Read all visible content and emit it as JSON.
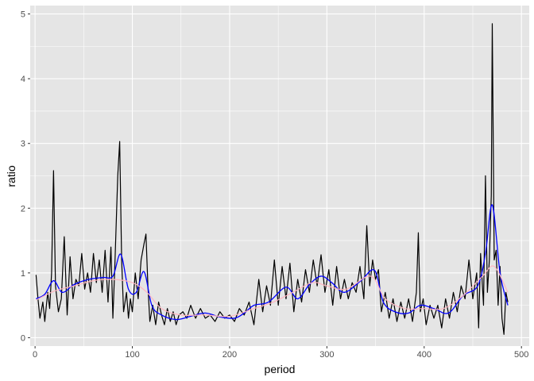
{
  "chart_data": {
    "type": "line",
    "xlabel": "period",
    "ylabel": "ratio",
    "xlim": [
      -5,
      508
    ],
    "ylim": [
      -0.13,
      5.13
    ],
    "x_ticks": [
      0,
      100,
      200,
      300,
      400,
      500
    ],
    "y_ticks": [
      0,
      1,
      2,
      3,
      4,
      5
    ],
    "grid": true,
    "panel_background": "#e5e5e5",
    "grid_color": "#ffffff",
    "n_periods": 486,
    "series": [
      {
        "color": "#000000",
        "anchors": [
          [
            1,
            0.97
          ],
          [
            3,
            0.6
          ],
          [
            5,
            0.3
          ],
          [
            8,
            0.55
          ],
          [
            10,
            0.25
          ],
          [
            13,
            0.7
          ],
          [
            15,
            0.45
          ],
          [
            17,
            1.0
          ],
          [
            19,
            2.58
          ],
          [
            21,
            0.8
          ],
          [
            24,
            0.4
          ],
          [
            27,
            0.6
          ],
          [
            30,
            1.56
          ],
          [
            33,
            0.35
          ],
          [
            36,
            1.25
          ],
          [
            39,
            0.6
          ],
          [
            42,
            0.9
          ],
          [
            45,
            0.8
          ],
          [
            48,
            1.3
          ],
          [
            51,
            0.75
          ],
          [
            54,
            1.0
          ],
          [
            57,
            0.7
          ],
          [
            60,
            1.3
          ],
          [
            63,
            0.85
          ],
          [
            66,
            1.2
          ],
          [
            69,
            0.7
          ],
          [
            72,
            1.35
          ],
          [
            75,
            0.55
          ],
          [
            78,
            1.4
          ],
          [
            80,
            0.3
          ],
          [
            82,
            1.1
          ],
          [
            85,
            2.5
          ],
          [
            87,
            3.03
          ],
          [
            89,
            1.2
          ],
          [
            91,
            0.4
          ],
          [
            94,
            0.7
          ],
          [
            96,
            0.3
          ],
          [
            98,
            0.6
          ],
          [
            100,
            0.4
          ],
          [
            103,
            1.0
          ],
          [
            106,
            0.6
          ],
          [
            109,
            1.2
          ],
          [
            112,
            1.45
          ],
          [
            114,
            1.6
          ],
          [
            116,
            0.8
          ],
          [
            118,
            0.25
          ],
          [
            121,
            0.5
          ],
          [
            124,
            0.2
          ],
          [
            127,
            0.55
          ],
          [
            130,
            0.35
          ],
          [
            133,
            0.2
          ],
          [
            136,
            0.45
          ],
          [
            139,
            0.25
          ],
          [
            142,
            0.4
          ],
          [
            145,
            0.2
          ],
          [
            148,
            0.35
          ],
          [
            152,
            0.4
          ],
          [
            156,
            0.3
          ],
          [
            160,
            0.5
          ],
          [
            165,
            0.3
          ],
          [
            170,
            0.45
          ],
          [
            175,
            0.3
          ],
          [
            180,
            0.35
          ],
          [
            185,
            0.25
          ],
          [
            190,
            0.4
          ],
          [
            195,
            0.3
          ],
          [
            200,
            0.35
          ],
          [
            205,
            0.25
          ],
          [
            210,
            0.45
          ],
          [
            215,
            0.35
          ],
          [
            220,
            0.55
          ],
          [
            225,
            0.2
          ],
          [
            230,
            0.9
          ],
          [
            234,
            0.4
          ],
          [
            238,
            0.8
          ],
          [
            242,
            0.5
          ],
          [
            246,
            1.2
          ],
          [
            250,
            0.5
          ],
          [
            254,
            1.1
          ],
          [
            258,
            0.6
          ],
          [
            262,
            1.15
          ],
          [
            266,
            0.4
          ],
          [
            270,
            0.9
          ],
          [
            274,
            0.55
          ],
          [
            278,
            1.05
          ],
          [
            282,
            0.7
          ],
          [
            286,
            1.2
          ],
          [
            290,
            0.8
          ],
          [
            294,
            1.28
          ],
          [
            298,
            0.7
          ],
          [
            302,
            1.05
          ],
          [
            306,
            0.5
          ],
          [
            310,
            1.1
          ],
          [
            314,
            0.6
          ],
          [
            318,
            0.9
          ],
          [
            322,
            0.6
          ],
          [
            326,
            0.85
          ],
          [
            330,
            0.7
          ],
          [
            334,
            1.1
          ],
          [
            338,
            0.6
          ],
          [
            341,
            1.73
          ],
          [
            344,
            0.8
          ],
          [
            347,
            1.2
          ],
          [
            350,
            0.9
          ],
          [
            353,
            1.05
          ],
          [
            356,
            0.4
          ],
          [
            360,
            0.7
          ],
          [
            364,
            0.3
          ],
          [
            368,
            0.6
          ],
          [
            372,
            0.25
          ],
          [
            376,
            0.55
          ],
          [
            380,
            0.3
          ],
          [
            384,
            0.6
          ],
          [
            388,
            0.25
          ],
          [
            392,
            0.7
          ],
          [
            394,
            1.62
          ],
          [
            396,
            0.4
          ],
          [
            399,
            0.6
          ],
          [
            402,
            0.2
          ],
          [
            406,
            0.5
          ],
          [
            410,
            0.3
          ],
          [
            414,
            0.5
          ],
          [
            418,
            0.15
          ],
          [
            422,
            0.6
          ],
          [
            426,
            0.3
          ],
          [
            430,
            0.7
          ],
          [
            434,
            0.4
          ],
          [
            438,
            0.8
          ],
          [
            442,
            0.6
          ],
          [
            446,
            1.2
          ],
          [
            450,
            0.6
          ],
          [
            454,
            1.0
          ],
          [
            456,
            0.15
          ],
          [
            458,
            1.3
          ],
          [
            461,
            0.5
          ],
          [
            463,
            2.5
          ],
          [
            465,
            0.7
          ],
          [
            467,
            1.2
          ],
          [
            469,
            2.2
          ],
          [
            470,
            4.85
          ],
          [
            472,
            1.2
          ],
          [
            474,
            1.35
          ],
          [
            476,
            0.5
          ],
          [
            478,
            1.1
          ],
          [
            480,
            0.3
          ],
          [
            482,
            0.05
          ],
          [
            484,
            0.7
          ],
          [
            486,
            0.55
          ]
        ]
      },
      {
        "color": "#0000ff",
        "anchors": [
          [
            1,
            0.6
          ],
          [
            10,
            0.67
          ],
          [
            19,
            0.88
          ],
          [
            28,
            0.7
          ],
          [
            40,
            0.82
          ],
          [
            55,
            0.9
          ],
          [
            70,
            0.93
          ],
          [
            80,
            0.95
          ],
          [
            88,
            1.29
          ],
          [
            96,
            0.75
          ],
          [
            104,
            0.7
          ],
          [
            112,
            1.02
          ],
          [
            120,
            0.5
          ],
          [
            130,
            0.35
          ],
          [
            145,
            0.28
          ],
          [
            160,
            0.33
          ],
          [
            175,
            0.38
          ],
          [
            190,
            0.32
          ],
          [
            205,
            0.3
          ],
          [
            215,
            0.38
          ],
          [
            225,
            0.5
          ],
          [
            240,
            0.55
          ],
          [
            258,
            0.78
          ],
          [
            270,
            0.6
          ],
          [
            282,
            0.82
          ],
          [
            294,
            0.95
          ],
          [
            305,
            0.85
          ],
          [
            318,
            0.7
          ],
          [
            335,
            0.88
          ],
          [
            349,
            1.04
          ],
          [
            358,
            0.55
          ],
          [
            370,
            0.4
          ],
          [
            384,
            0.38
          ],
          [
            396,
            0.5
          ],
          [
            410,
            0.45
          ],
          [
            425,
            0.38
          ],
          [
            440,
            0.65
          ],
          [
            455,
            0.8
          ],
          [
            463,
            1.3
          ],
          [
            470,
            2.05
          ],
          [
            478,
            1.0
          ],
          [
            486,
            0.5
          ]
        ]
      },
      {
        "color": "#ffb6c1",
        "anchors": [
          [
            1,
            0.58
          ],
          [
            20,
            0.72
          ],
          [
            40,
            0.8
          ],
          [
            60,
            0.88
          ],
          [
            80,
            0.9
          ],
          [
            100,
            0.85
          ],
          [
            115,
            0.7
          ],
          [
            130,
            0.45
          ],
          [
            150,
            0.35
          ],
          [
            175,
            0.35
          ],
          [
            200,
            0.33
          ],
          [
            225,
            0.45
          ],
          [
            245,
            0.55
          ],
          [
            265,
            0.7
          ],
          [
            285,
            0.85
          ],
          [
            300,
            0.8
          ],
          [
            320,
            0.75
          ],
          [
            345,
            0.95
          ],
          [
            360,
            0.6
          ],
          [
            380,
            0.45
          ],
          [
            400,
            0.45
          ],
          [
            420,
            0.45
          ],
          [
            440,
            0.65
          ],
          [
            460,
            0.95
          ],
          [
            472,
            1.1
          ],
          [
            486,
            0.7
          ]
        ]
      }
    ]
  }
}
